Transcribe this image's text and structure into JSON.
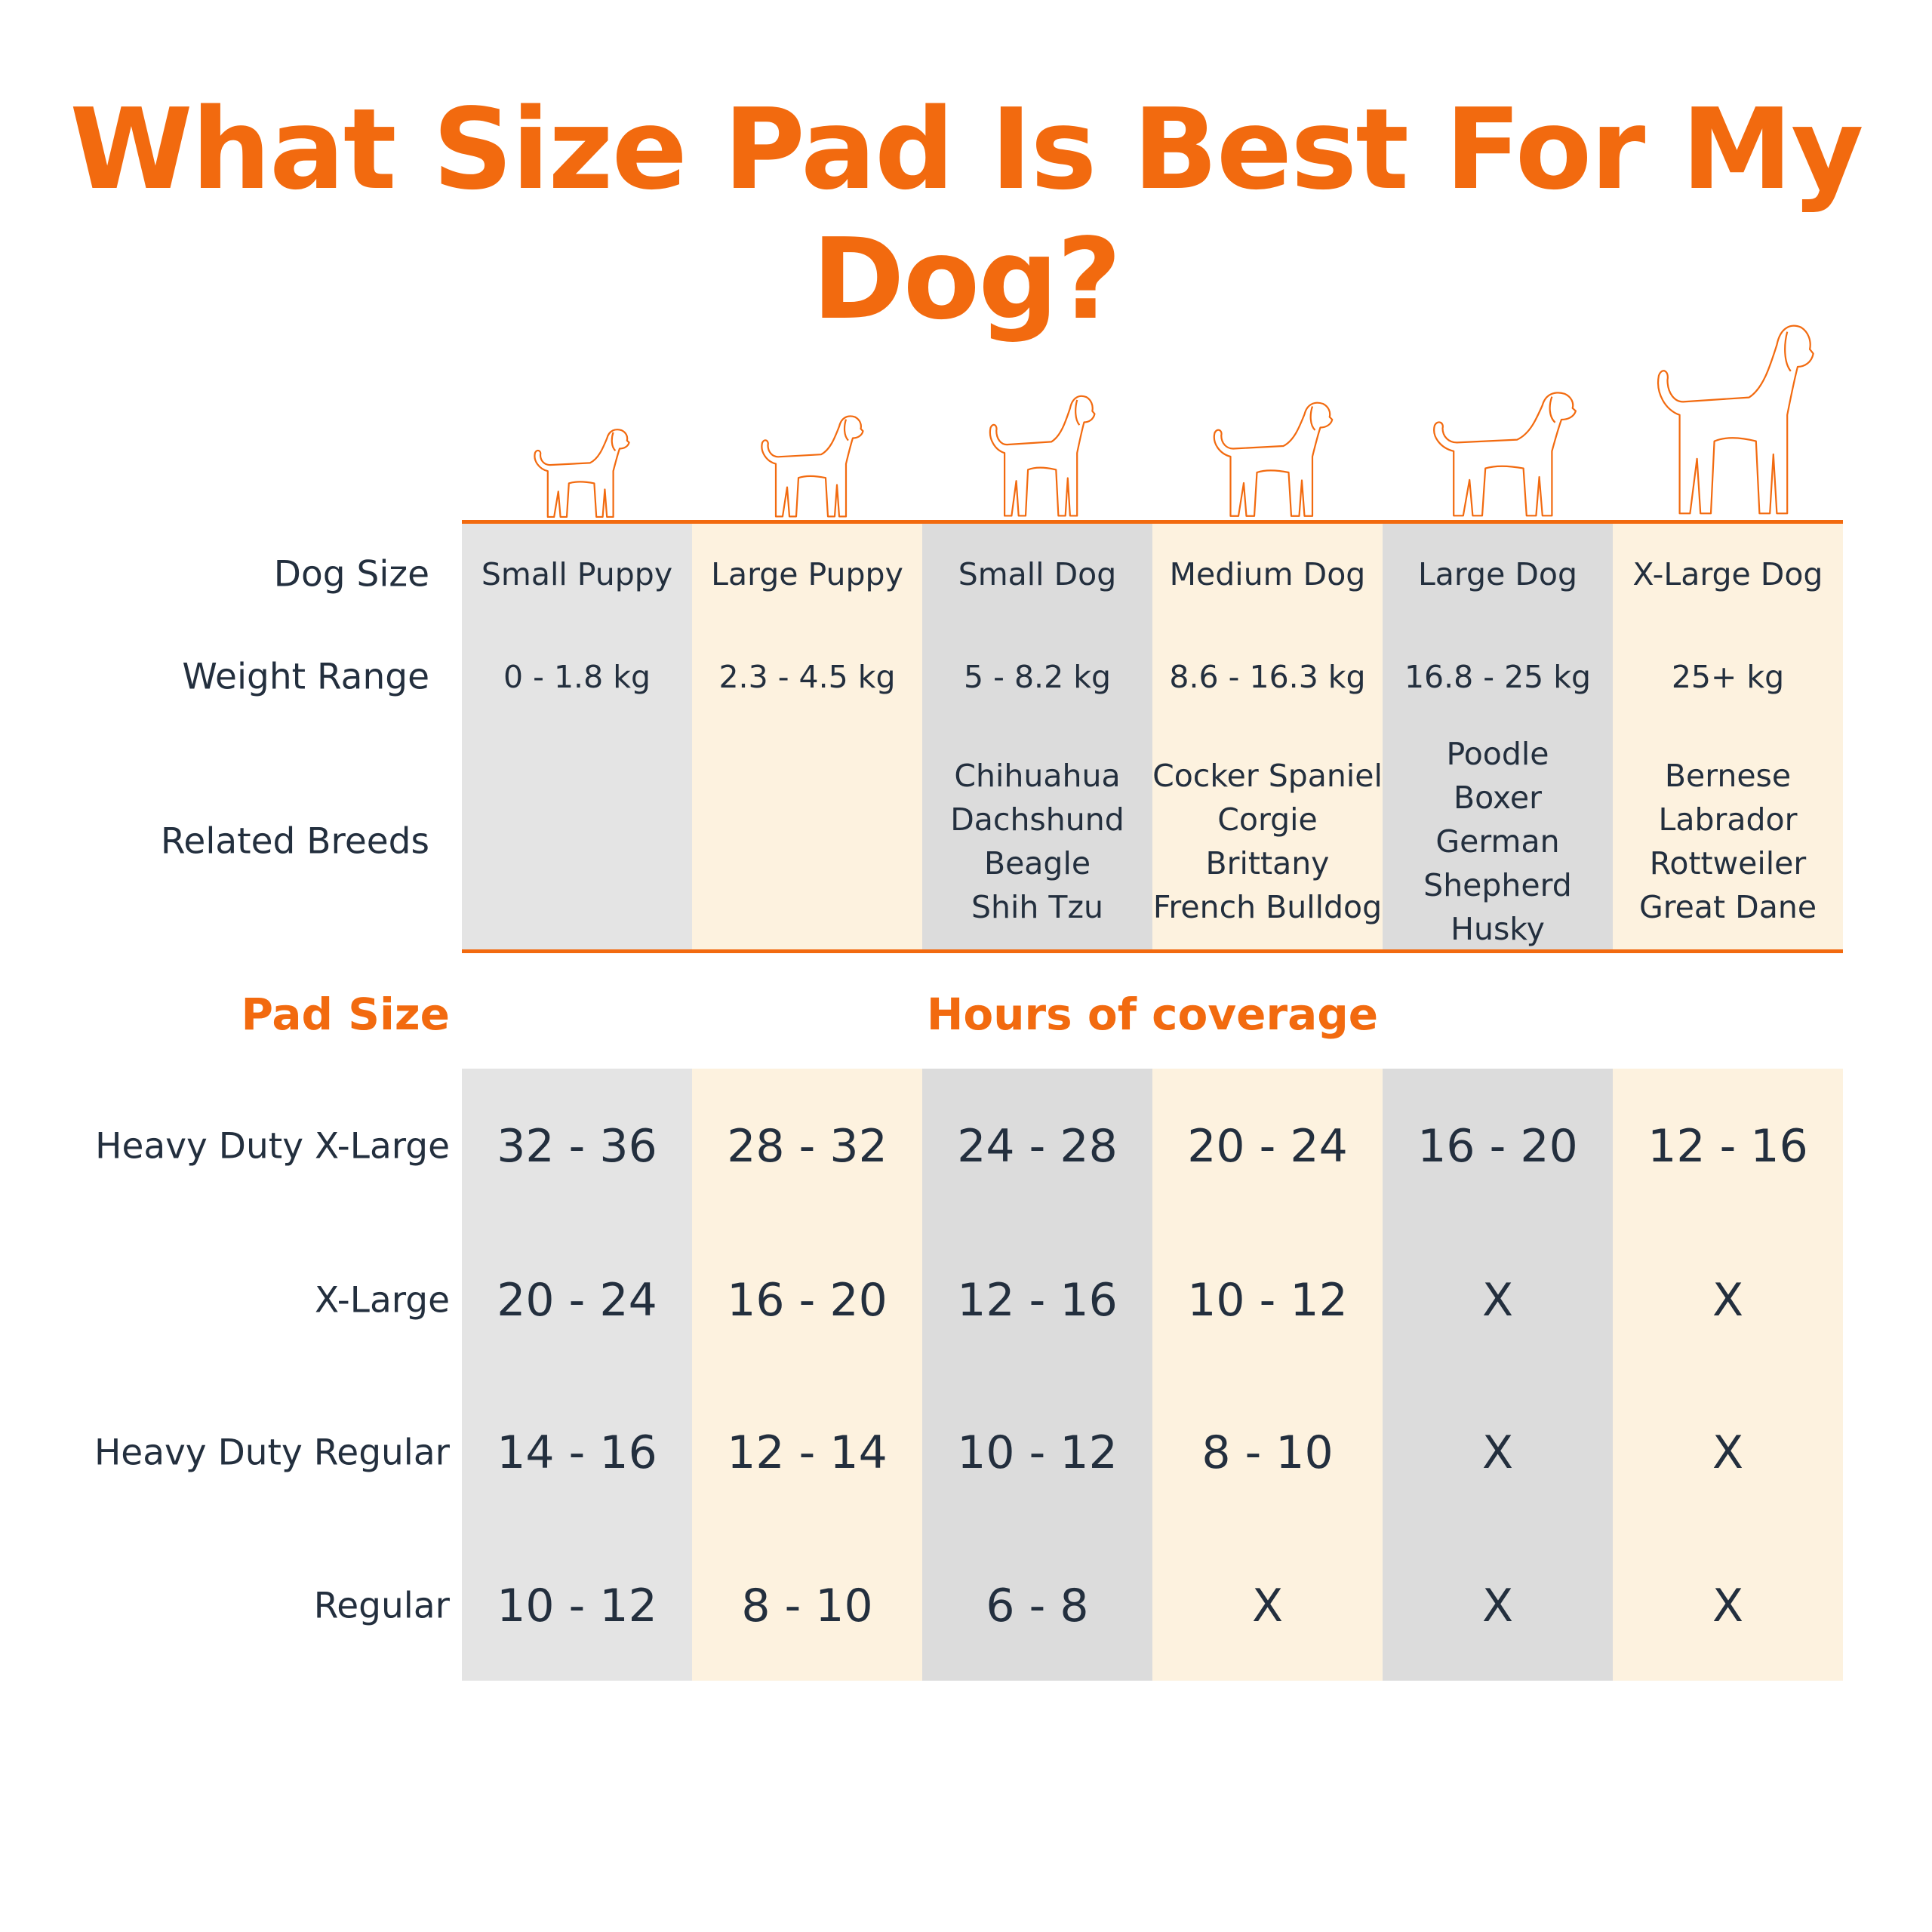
{
  "title": "What Size Pad Is Best For My Dog?",
  "colors": {
    "accent": "#f26a0f",
    "gray": "#e4e4e4",
    "cream": "#fdf2df",
    "text": "#232f3e"
  },
  "row_labels": {
    "dog_size": "Dog Size",
    "weight_range": "Weight Range",
    "related_breeds": "Related Breeds"
  },
  "columns": [
    {
      "size": "Small Puppy",
      "weight": "0 - 1.8 kg",
      "breeds": [],
      "icon": "small-puppy-icon"
    },
    {
      "size": "Large Puppy",
      "weight": "2.3 - 4.5 kg",
      "breeds": [],
      "icon": "large-puppy-icon"
    },
    {
      "size": "Small Dog",
      "weight": "5 - 8.2 kg",
      "breeds": [
        "Chihuahua",
        "Dachshund",
        "Beagle",
        "Shih Tzu"
      ],
      "icon": "small-dog-icon"
    },
    {
      "size": "Medium Dog",
      "weight": "8.6 - 16.3 kg",
      "breeds": [
        "Cocker Spaniel",
        "Corgie",
        "Brittany",
        "French Bulldog"
      ],
      "icon": "medium-dog-icon"
    },
    {
      "size": "Large Dog",
      "weight": "16.8 - 25 kg",
      "breeds": [
        "Poodle",
        "Boxer",
        "German",
        "Shepherd",
        "Husky"
      ],
      "icon": "large-dog-icon"
    },
    {
      "size": "X-Large Dog",
      "weight": "25+ kg",
      "breeds": [
        "Bernese",
        "Labrador",
        "Rottweiler",
        "Great Dane"
      ],
      "icon": "x-large-dog-icon"
    }
  ],
  "pad_size_heading": "Pad Size",
  "coverage_heading": "Hours of coverage",
  "coverage": [
    {
      "pad": "Heavy Duty X-Large",
      "values": [
        "32 - 36",
        "28 - 32",
        "24 - 28",
        "20 - 24",
        "16 - 20",
        "12 - 16"
      ]
    },
    {
      "pad": "X-Large",
      "values": [
        "20 - 24",
        "16 - 20",
        "12 - 16",
        "10 - 12",
        "X",
        "X"
      ]
    },
    {
      "pad": "Heavy Duty Regular",
      "values": [
        "14 - 16",
        "12 - 14",
        "10 - 12",
        "8 - 10",
        "X",
        "X"
      ]
    },
    {
      "pad": "Regular",
      "values": [
        "10 - 12",
        "8 - 10",
        "6 - 8",
        "X",
        "X",
        "X"
      ]
    }
  ]
}
